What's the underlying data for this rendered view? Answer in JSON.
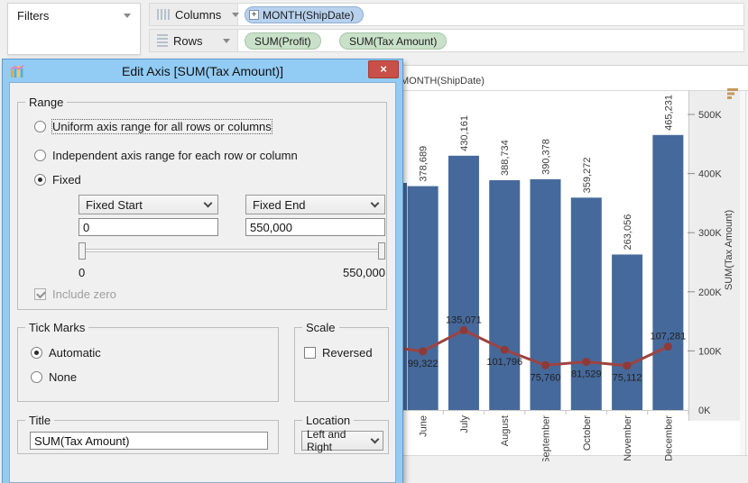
{
  "shelves": {
    "filters_label": "Filters",
    "columns_label": "Columns",
    "rows_label": "Rows",
    "columns_pills": [
      {
        "label": "MONTH(ShipDate)",
        "expand_glyph": "+"
      }
    ],
    "rows_pills": [
      {
        "label": "SUM(Profit)"
      },
      {
        "label": "SUM(Tax Amount)"
      }
    ]
  },
  "dialog": {
    "title": "Edit Axis [SUM(Tax Amount)]",
    "range": {
      "legend": "Range",
      "options": [
        {
          "label": "Uniform axis range for all rows or columns",
          "selected": false,
          "focused": true
        },
        {
          "label": "Independent axis range for each row or column",
          "selected": false
        },
        {
          "label": "Fixed",
          "selected": true
        }
      ],
      "fixed_start_dropdown": "Fixed Start",
      "fixed_end_dropdown": "Fixed End",
      "fixed_start_value": "0",
      "fixed_end_value": "550,000",
      "slider_min_label": "0",
      "slider_max_label": "550,000",
      "include_zero": {
        "label": "Include zero",
        "checked": true,
        "disabled": true
      }
    },
    "tick_marks": {
      "legend": "Tick Marks",
      "options": [
        {
          "label": "Automatic",
          "selected": true
        },
        {
          "label": "None",
          "selected": false
        }
      ]
    },
    "scale": {
      "legend": "Scale",
      "reversed_label": "Reversed",
      "reversed_checked": false
    },
    "title_group": {
      "legend": "Title",
      "value": "SUM(Tax Amount)"
    },
    "location_group": {
      "legend": "Location",
      "value": "Left and Right"
    }
  },
  "chart_data": {
    "type": "bar",
    "subtype": "bar with line overlay, dual measures",
    "column_header": "MONTH(ShipDate)",
    "categories": [
      "June",
      "July",
      "August",
      "September",
      "October",
      "November",
      "December"
    ],
    "series": [
      {
        "name": "SUM(Tax Amount)",
        "type": "bar",
        "values": [
          378689,
          430161,
          388734,
          390378,
          359272,
          263056,
          465231
        ]
      },
      {
        "name": "SUM(Profit)",
        "type": "line",
        "values": [
          99322,
          135071,
          101796,
          75760,
          81529,
          75112,
          107281
        ],
        "label_pos": [
          "below",
          "above",
          "below",
          "below",
          "below",
          "below",
          "above"
        ]
      }
    ],
    "y_axis": {
      "title": "SUM(Tax Amount)",
      "side": "right",
      "ticks": [
        "0K",
        "100K",
        "200K",
        "300K",
        "400K",
        "500K"
      ],
      "tick_values": [
        0,
        100000,
        200000,
        300000,
        400000,
        500000
      ],
      "range": [
        0,
        541000
      ]
    },
    "grid": false,
    "clipped_left_bar": true
  },
  "icons": {
    "close": "×"
  },
  "colors": {
    "bar": "#46699b",
    "line": "#9e4340",
    "line_marker": "#8d3a38",
    "pill_dimension": "#b8d2ee",
    "pill_measure": "#c9e1c9",
    "dialog_frame": "#92cbf4",
    "close_button": "#c85048",
    "sort_icon": "#c49a5f",
    "axis_highlight": "#ededed"
  }
}
